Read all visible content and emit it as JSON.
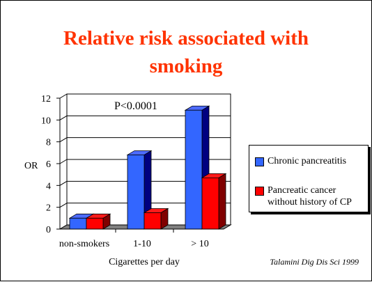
{
  "slide": {
    "title_line1": "Relative risk associated with",
    "title_line2": "smoking",
    "source": "Talamini Dig Dis Sci 1999"
  },
  "chart_data": {
    "type": "bar",
    "categories": [
      "non-smokers",
      "1-10",
      "> 10"
    ],
    "series": [
      {
        "name": "Chronic pancreatitis",
        "values": [
          1.0,
          6.8,
          10.9
        ],
        "color": "#3366ff",
        "top_color": "#4d6bff",
        "side_color": "#000080"
      },
      {
        "name": "Pancreatic cancer without history of CP",
        "name_lines": [
          "Pancreatic cancer",
          "without history of CP"
        ],
        "values": [
          1.0,
          1.5,
          4.7
        ],
        "color": "#ff0000",
        "top_color": "#ff1a1a",
        "side_color": "#800000"
      }
    ],
    "title": "",
    "xlabel": "Cigarettes per day",
    "ylabel": "OR",
    "ylim": [
      0,
      12
    ],
    "yticks": [
      0,
      2,
      4,
      6,
      8,
      10,
      12
    ],
    "annotation": "P<0.0001",
    "grid": true,
    "legend_position": "right",
    "floor_color": "#808080"
  }
}
